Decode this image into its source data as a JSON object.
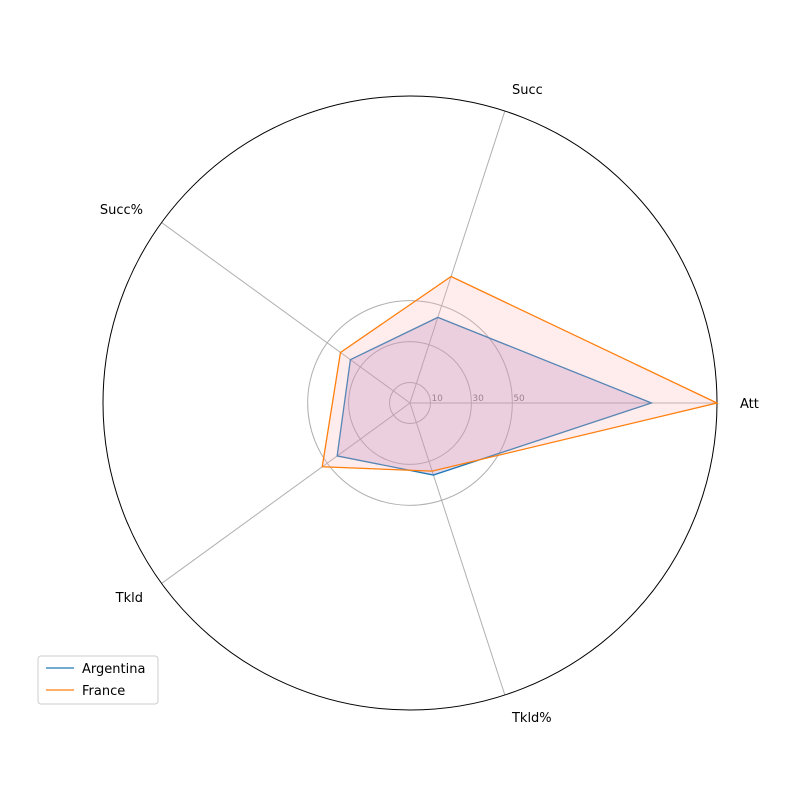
{
  "chart_data": {
    "type": "radar",
    "categories": [
      "Att",
      "Succ",
      "Succ%",
      "Tkld",
      "Tkld%"
    ],
    "radial_ticks": [
      10,
      30,
      50
    ],
    "rlim": [
      0,
      150
    ],
    "series": [
      {
        "name": "Argentina",
        "values": [
          118,
          44,
          36,
          44,
          37
        ],
        "color": "#1f77b4",
        "fill": "#9467bd"
      },
      {
        "name": "France",
        "values": [
          150,
          65,
          42,
          53,
          35
        ],
        "color": "#ff7f0e",
        "fill": "#ffb3b3"
      }
    ],
    "legend": "bottom-left",
    "grid": true
  }
}
